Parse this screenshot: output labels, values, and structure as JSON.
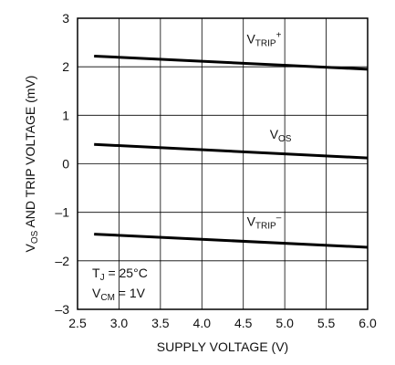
{
  "chart_data": {
    "type": "line",
    "xlabel": "SUPPLY VOLTAGE (V)",
    "ylabel": {
      "v": "V",
      "sub": "OS",
      "rest": " AND TRIP VOLTAGE (mV)"
    },
    "xlim": [
      2.5,
      6.0
    ],
    "ylim": [
      -3,
      3
    ],
    "grid": true,
    "x_ticks": [
      {
        "value": 2.5,
        "label": "2.5"
      },
      {
        "value": 3.0,
        "label": "3.0"
      },
      {
        "value": 3.5,
        "label": "3.5"
      },
      {
        "value": 4.0,
        "label": "4.0"
      },
      {
        "value": 4.5,
        "label": "4.5"
      },
      {
        "value": 5.0,
        "label": "5.0"
      },
      {
        "value": 5.5,
        "label": "5.5"
      },
      {
        "value": 6.0,
        "label": "6.0"
      }
    ],
    "y_ticks": [
      {
        "value": 3,
        "label": "3"
      },
      {
        "value": 2,
        "label": "2"
      },
      {
        "value": 1,
        "label": "1"
      },
      {
        "value": 0,
        "label": "0"
      },
      {
        "value": -1,
        "label": "–1"
      },
      {
        "value": -2,
        "label": "–2"
      },
      {
        "value": -3,
        "label": "–3"
      }
    ],
    "series": [
      {
        "label": {
          "v": "V",
          "sub": "TRIP",
          "sup": "+"
        },
        "x": [
          2.7,
          6.0
        ],
        "y": [
          2.22,
          1.95
        ],
        "label_at": {
          "x": 4.75,
          "y": 2.48
        }
      },
      {
        "label": {
          "v": "V",
          "sub": "OS",
          "sup": ""
        },
        "x": [
          2.7,
          6.0
        ],
        "y": [
          0.4,
          0.12
        ],
        "label_at": {
          "x": 4.95,
          "y": 0.52
        }
      },
      {
        "label": {
          "v": "V",
          "sub": "TRIP",
          "sup": "–"
        },
        "x": [
          2.7,
          6.0
        ],
        "y": [
          -1.45,
          -1.72
        ],
        "label_at": {
          "x": 4.75,
          "y": -1.28
        }
      }
    ],
    "conditions": [
      {
        "v": "T",
        "sub": "J",
        "rest": " = 25°C"
      },
      {
        "v": "V",
        "sub": "CM",
        "rest": " = 1V"
      }
    ],
    "line_color": "#000000",
    "grid_color": "#000000"
  }
}
